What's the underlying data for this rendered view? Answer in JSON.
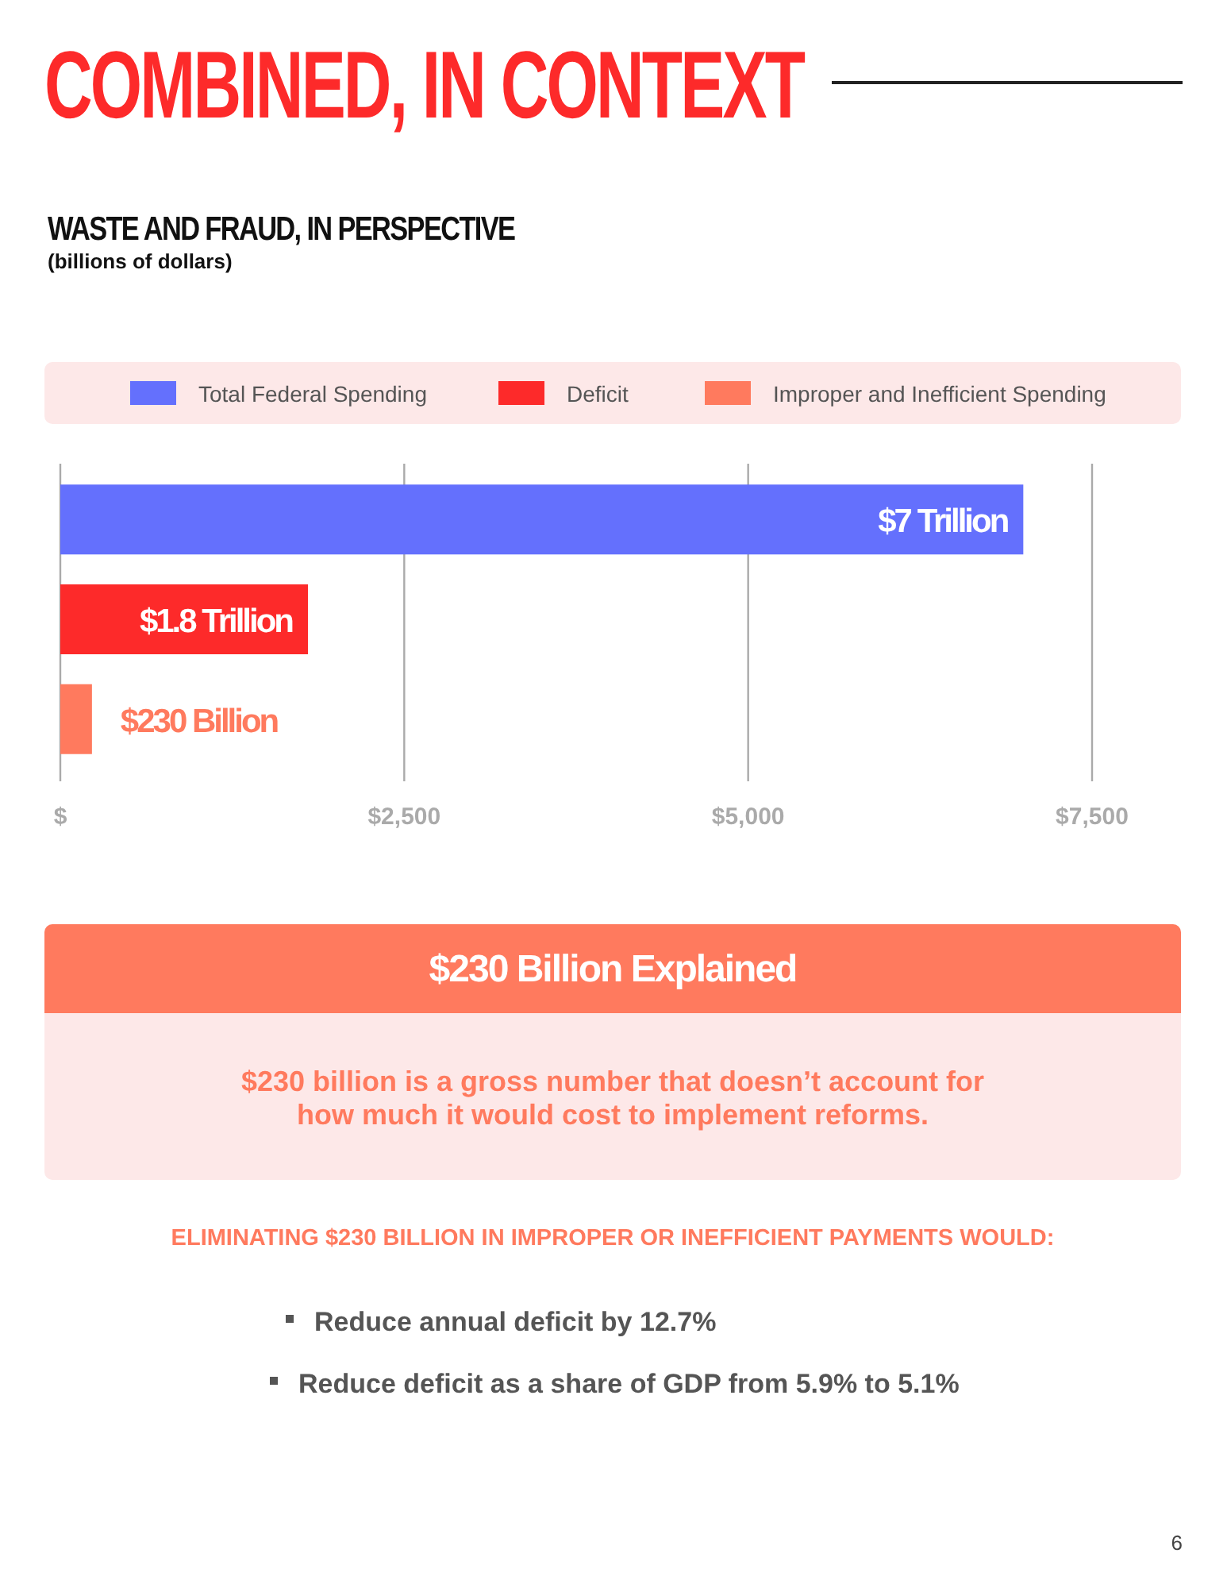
{
  "chart_data": {
    "type": "bar",
    "orientation": "horizontal",
    "title": "COMBINED, IN CONTEXT",
    "subtitle": "WASTE AND FRAUD, IN PERSPECTIVE",
    "categories": [
      null,
      null,
      null
    ],
    "series": [
      {
        "name": "Total Federal Spending",
        "color": "#6470fd",
        "values": [
          7000,
          null,
          null
        ]
      },
      {
        "name": "Deficit",
        "color": "#fd2a2a",
        "values": [
          null,
          1800,
          null
        ]
      },
      {
        "name": "Improper and Inefficient Spending",
        "color": "#ff7a5e",
        "values": [
          null,
          null,
          230
        ]
      }
    ],
    "xlim": [
      0,
      7500
    ],
    "xticks": [
      {
        "value": 0,
        "label": "$"
      },
      {
        "value": 2500,
        "label": "$2,500"
      },
      {
        "value": 5000,
        "label": "$5,000"
      },
      {
        "value": 7500,
        "label": "$7,500"
      }
    ],
    "grid": "x",
    "legend": "top",
    "annotations": [
      {
        "text": "$7 Trillion",
        "x": 7000
      },
      {
        "text": "$1.8 Trillion",
        "x": 1800
      },
      {
        "text": "$230 Billion",
        "x": 230
      },
      "(billions of dollars)",
      "$230 Billion Explained",
      "$230 billion is a gross number that doesn’t account for how much it would cost to implement reforms.",
      "ELIMINATING $230 BILLION IN IMPROPER OR INEFFICIENT PAYMENTS WOULD:",
      "Reduce annual deficit by 12.7%",
      "Reduce deficit as a share of GDP from 5.9% to 5.1%",
      "6"
    ]
  }
}
